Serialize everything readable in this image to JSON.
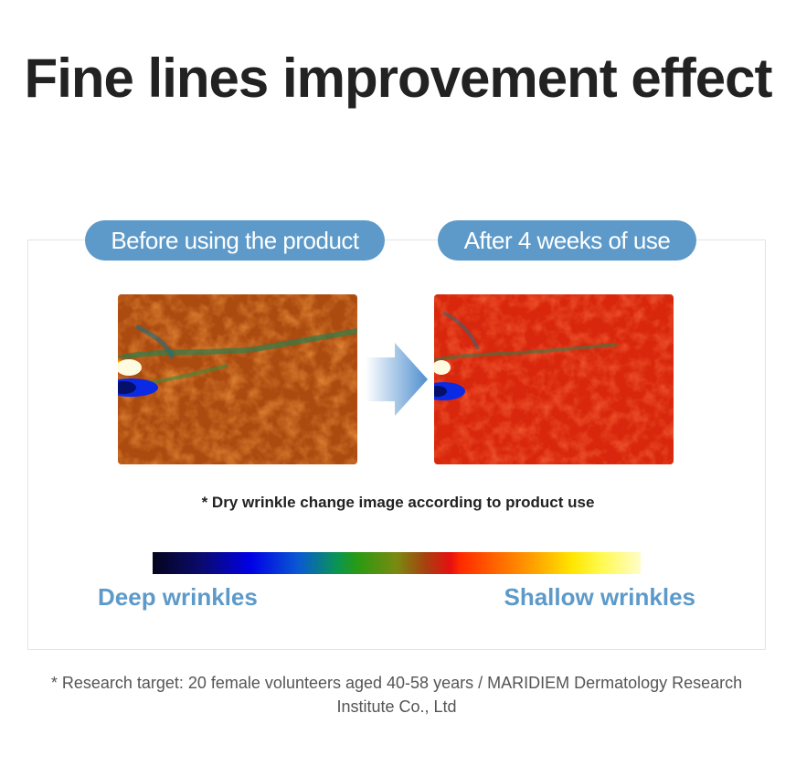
{
  "title": "Fine lines improvement effect",
  "before_label": "Before using the product",
  "after_label": "After 4 weeks of use",
  "caption": "* Dry wrinkle change image according to product use",
  "scale": {
    "deep_label": "Deep wrinkles",
    "shallow_label": "Shallow wrinkles"
  },
  "footnote": "* Research target: 20 female volunteers aged 40-58 years / MARIDIEM Dermatology Research Institute Co., Ltd",
  "colors": {
    "accent": "#5d9ac9",
    "title": "#222222"
  }
}
